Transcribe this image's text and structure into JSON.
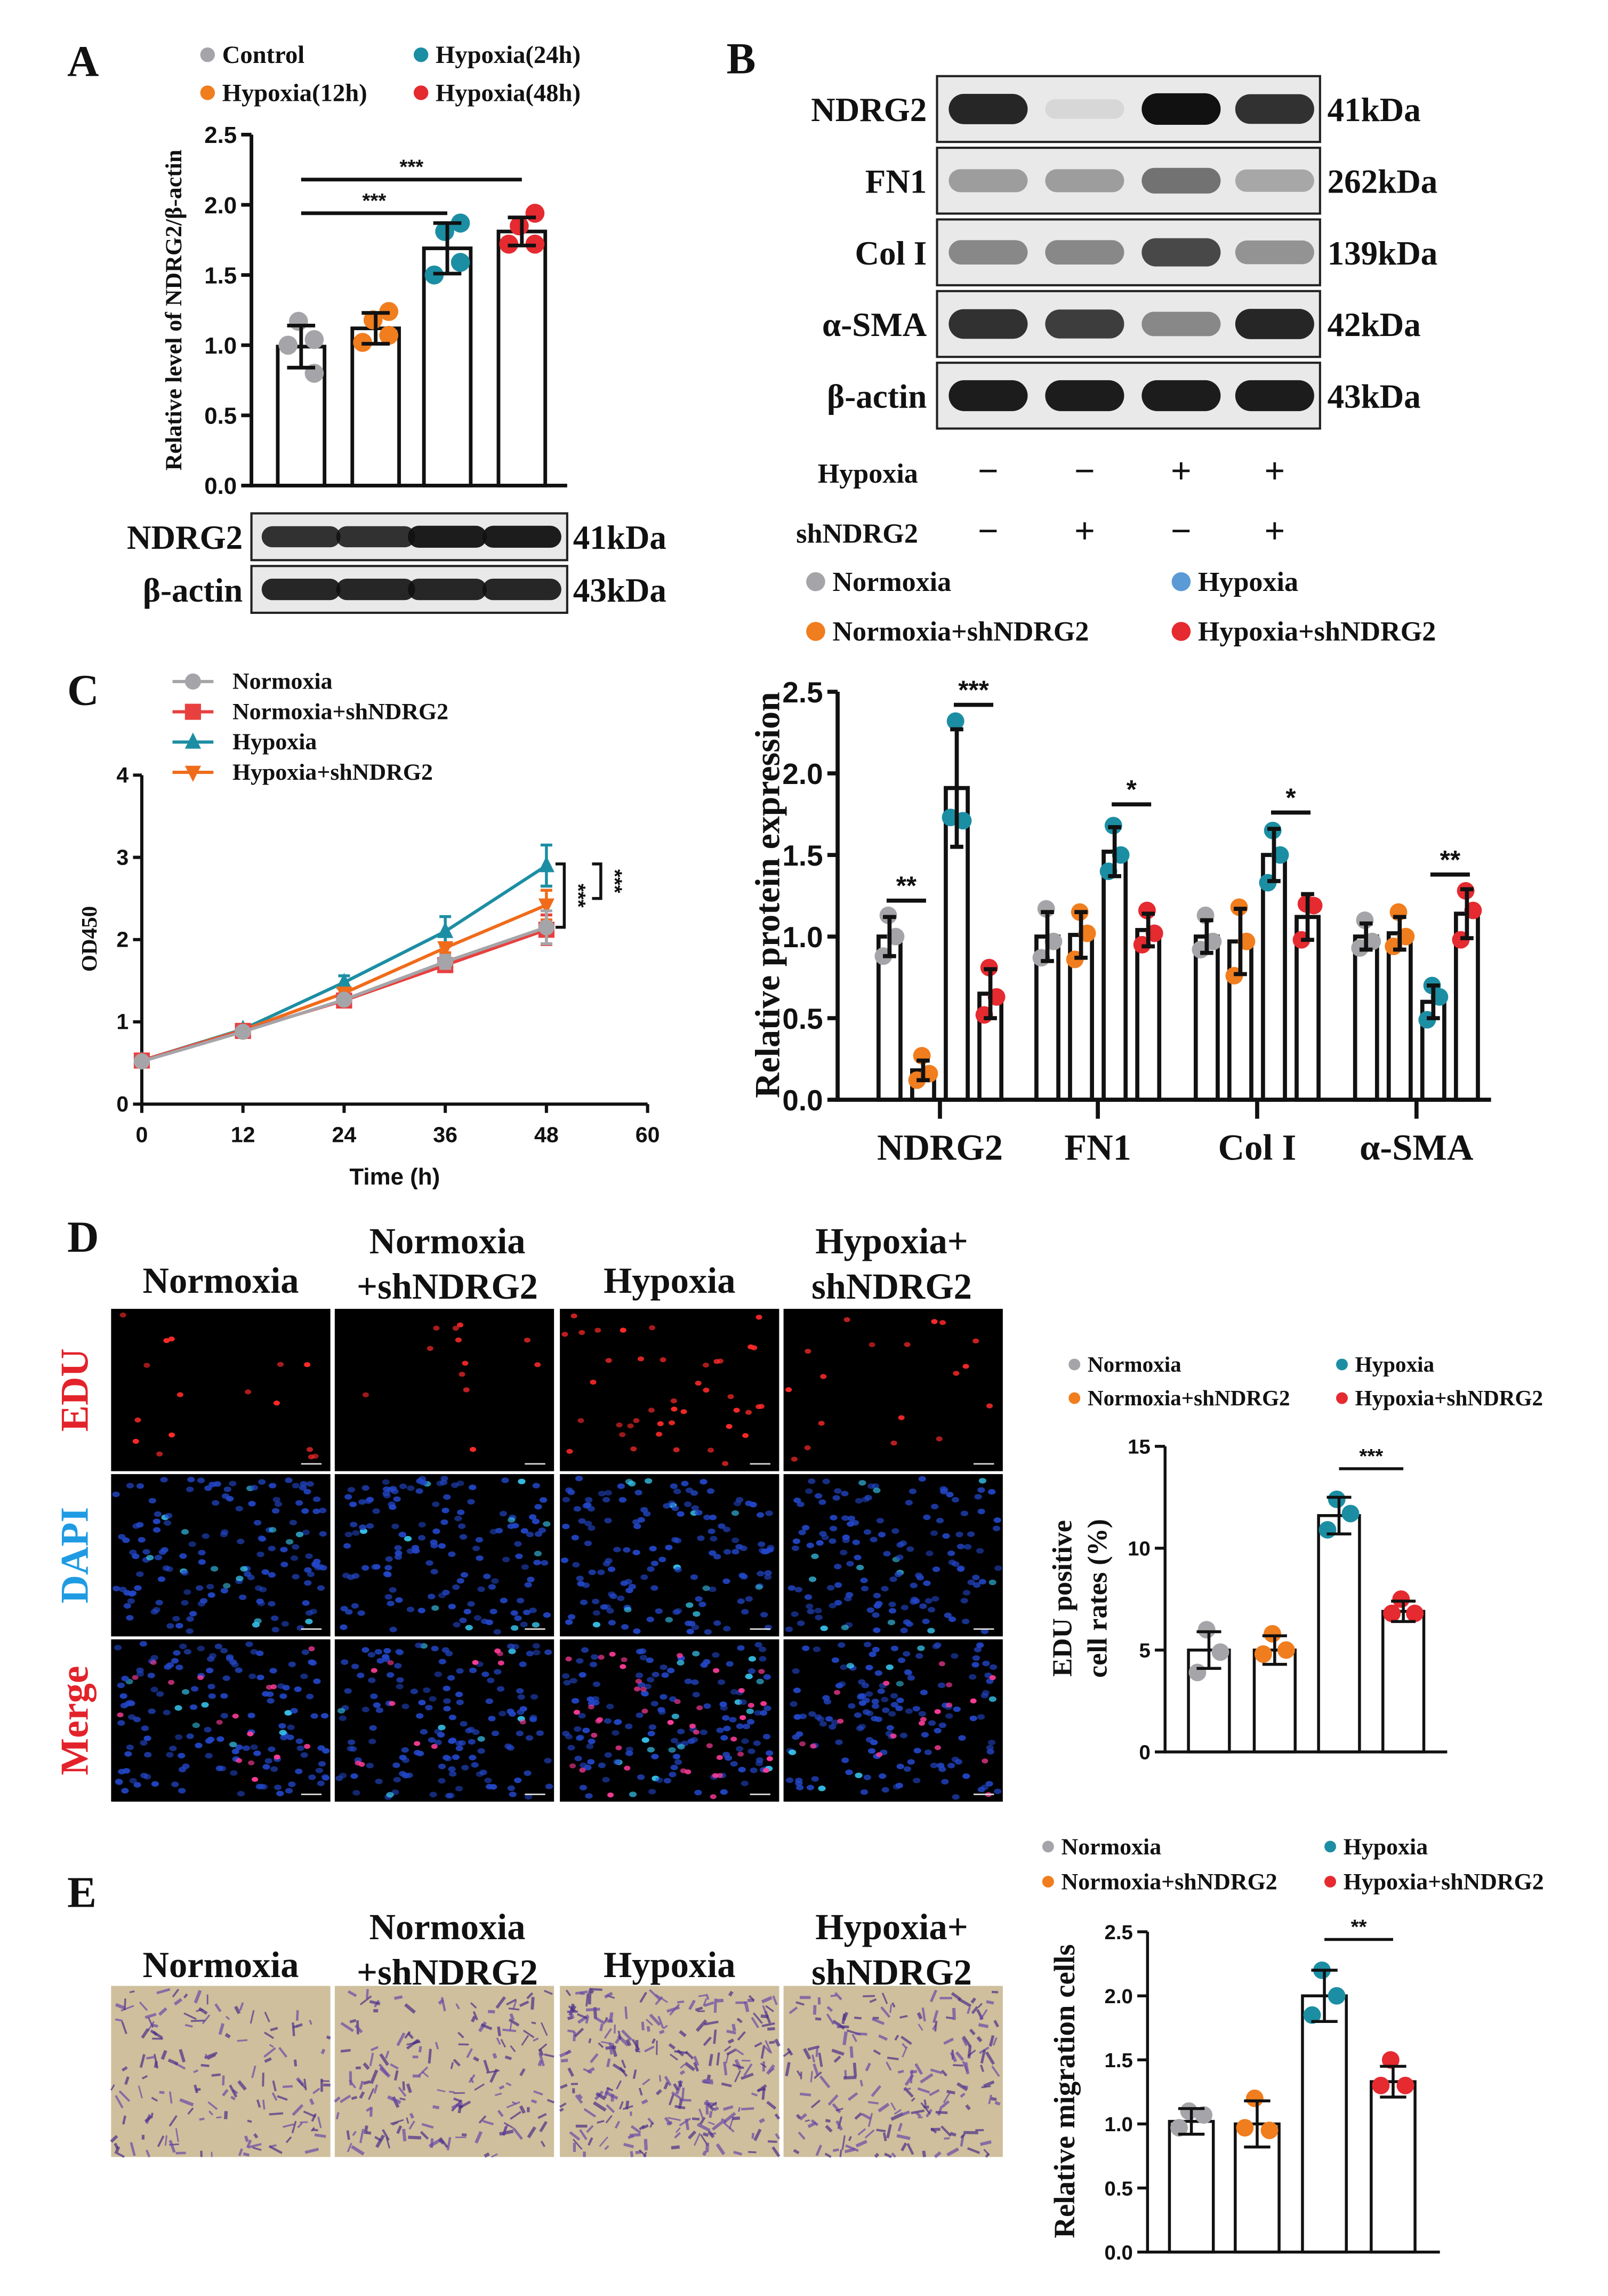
{
  "panel_labels": [
    "A",
    "B",
    "C",
    "D",
    "E"
  ],
  "colors": {
    "gray": "#a5a5a9",
    "orange": "#f07d1e",
    "teal": "#1c8ea3",
    "red": "#e52a30",
    "legend_blue": "#5b9bd5",
    "dapi": "#1f9be3",
    "edu": "#e3222a"
  },
  "blots": {
    "A": {
      "rows": [
        {
          "label": "NDRG2",
          "size": "41kDa",
          "band_intensity": [
            0.85,
            0.85,
            0.95,
            0.95
          ]
        },
        {
          "label": "β-actin",
          "size": "43kDa",
          "band_intensity": [
            0.9,
            0.9,
            0.9,
            0.9
          ]
        }
      ]
    },
    "B": {
      "rows": [
        {
          "label": "NDRG2",
          "size": "41kDa",
          "band_intensity": [
            0.9,
            0.08,
            1.0,
            0.85
          ]
        },
        {
          "label": "FN1",
          "size": "262kDa",
          "band_intensity": [
            0.35,
            0.35,
            0.55,
            0.3
          ]
        },
        {
          "label": "Col I",
          "size": "139kDa",
          "band_intensity": [
            0.45,
            0.45,
            0.75,
            0.4
          ]
        },
        {
          "label": "α-SMA",
          "size": "42kDa",
          "band_intensity": [
            0.85,
            0.8,
            0.45,
            0.9
          ]
        },
        {
          "label": "β-actin",
          "size": "43kDa",
          "band_intensity": [
            0.95,
            0.95,
            0.95,
            0.95
          ]
        }
      ],
      "conditions": [
        {
          "label": "Hypoxia",
          "signs": [
            "−",
            "−",
            "+",
            "+"
          ]
        },
        {
          "label": "shNDRG2",
          "signs": [
            "−",
            "+",
            "−",
            "+"
          ]
        }
      ],
      "legend": [
        "Normoxia",
        "Normoxia+shNDRG2",
        "Hypoxia",
        "Hypoxia+shNDRG2"
      ]
    }
  },
  "microscopy": {
    "D": {
      "columns": [
        [
          "Normoxia"
        ],
        [
          "Normoxia",
          "+shNDRG2"
        ],
        [
          "Hypoxia"
        ],
        [
          "Hypoxia+",
          "shNDRG2"
        ]
      ],
      "rows": [
        "EDU",
        "DAPI",
        "Merge"
      ]
    },
    "E": {
      "columns": [
        [
          "Normoxia"
        ],
        [
          "Normoxia",
          "+shNDRG2"
        ],
        [
          "Hypoxia"
        ],
        [
          "Hypoxia+",
          "shNDRG2"
        ]
      ]
    }
  },
  "chart_data": [
    {
      "type": "bar",
      "panel": "A",
      "title": "",
      "ylabel": "Relative level of NDRG2/β-actin",
      "ylim": [
        0,
        2.5
      ],
      "yticks": [
        0,
        0.5,
        1,
        1.5,
        2,
        2.5
      ],
      "ytick_labels": [
        "0.0",
        "0.5",
        "1.0",
        "1.5",
        "2.0",
        "2.5"
      ],
      "categories": [
        "Control",
        "Hypoxia(12h)",
        "Hypoxia(24h)",
        "Hypoxia(48h)"
      ],
      "legend": [
        "Control",
        "Hypoxia(12h)",
        "Hypoxia(24h)",
        "Hypoxia(48h)"
      ],
      "values": [
        0.99,
        1.12,
        1.69,
        1.81
      ],
      "errors": [
        0.15,
        0.11,
        0.18,
        0.1
      ],
      "points": [
        [
          1.17,
          1.04,
          1.0,
          0.8
        ],
        [
          1.18,
          1.24,
          1.02,
          1.07
        ],
        [
          1.81,
          1.87,
          1.5,
          1.59
        ],
        [
          1.85,
          1.94,
          1.72,
          1.72
        ]
      ],
      "significance": [
        {
          "from": 0,
          "to": 2,
          "y": 1.94,
          "label": "***"
        },
        {
          "from": 0,
          "to": 3,
          "y": 2.18,
          "label": "***"
        }
      ]
    },
    {
      "type": "bar",
      "panel": "B",
      "title": "",
      "ylabel": "Relative protein expression",
      "ylim": [
        0,
        2.5
      ],
      "yticks": [
        0,
        0.5,
        1,
        1.5,
        2,
        2.5
      ],
      "ytick_labels": [
        "0.0",
        "0.5",
        "1.0",
        "1.5",
        "2.0",
        "2.5"
      ],
      "categories": [
        "NDRG2",
        "FN1",
        "Col I",
        "α-SMA"
      ],
      "series": [
        {
          "name": "Normoxia",
          "values": [
            1.0,
            1.0,
            1.0,
            1.0
          ],
          "errors": [
            0.12,
            0.15,
            0.1,
            0.08
          ],
          "points": [
            [
              1.13,
              1.0,
              0.88
            ],
            [
              1.17,
              0.97,
              0.87
            ],
            [
              1.13,
              0.97,
              0.92
            ],
            [
              1.1,
              0.97,
              0.93
            ]
          ]
        },
        {
          "name": "Normoxia+shNDRG2",
          "values": [
            0.18,
            1.01,
            0.97,
            1.02
          ],
          "errors": [
            0.06,
            0.14,
            0.2,
            0.1
          ],
          "points": [
            [
              0.27,
              0.16,
              0.12
            ],
            [
              1.15,
              1.02,
              0.86
            ],
            [
              1.18,
              0.97,
              0.76
            ],
            [
              1.15,
              1.0,
              0.94
            ]
          ]
        },
        {
          "name": "Hypoxia",
          "values": [
            1.91,
            1.52,
            1.5,
            0.6
          ],
          "errors": [
            0.36,
            0.15,
            0.16,
            0.1
          ],
          "points": [
            [
              2.32,
              1.71,
              1.73
            ],
            [
              1.68,
              1.5,
              1.4
            ],
            [
              1.65,
              1.5,
              1.33
            ],
            [
              0.7,
              0.63,
              0.49
            ]
          ]
        },
        {
          "name": "Hypoxia+shNDRG2",
          "values": [
            0.65,
            1.04,
            1.12,
            1.14
          ],
          "errors": [
            0.15,
            0.1,
            0.14,
            0.15
          ],
          "points": [
            [
              0.81,
              0.63,
              0.52
            ],
            [
              1.16,
              1.02,
              0.95
            ],
            [
              1.2,
              1.19,
              0.98
            ],
            [
              1.28,
              1.16,
              0.98
            ]
          ]
        }
      ],
      "significance": [
        {
          "group": 0,
          "from": 0,
          "to": 1,
          "y": 1.22,
          "label": "**"
        },
        {
          "group": 0,
          "from": 2,
          "to": 3,
          "y": 2.42,
          "label": "***"
        },
        {
          "group": 1,
          "from": 2,
          "to": 3,
          "y": 1.81,
          "label": "*"
        },
        {
          "group": 2,
          "from": 2,
          "to": 3,
          "y": 1.76,
          "label": "*"
        },
        {
          "group": 3,
          "from": 2,
          "to": 3,
          "y": 1.38,
          "label": "**"
        }
      ]
    },
    {
      "type": "line",
      "panel": "C",
      "title": "",
      "xlabel": "Time (h)",
      "ylabel": "OD450",
      "xlim": [
        0,
        60
      ],
      "ylim": [
        0,
        4
      ],
      "xticks": [
        0,
        12,
        24,
        36,
        48,
        60
      ],
      "xtick_labels": [
        "0",
        "12",
        "24",
        "36",
        "48",
        "60"
      ],
      "yticks": [
        0,
        1,
        2,
        3,
        4
      ],
      "ytick_labels": [
        "0",
        "1",
        "2",
        "3",
        "4"
      ],
      "x": [
        0,
        12,
        24,
        36,
        48
      ],
      "series": [
        {
          "name": "Normoxia",
          "marker": "circle",
          "color": "#a5a5a9",
          "values": [
            0.52,
            0.88,
            1.27,
            1.73,
            2.15
          ],
          "errors": [
            0.02,
            0.03,
            0.05,
            0.08,
            0.2
          ]
        },
        {
          "name": "Normoxia+shNDRG2",
          "marker": "square",
          "color": "#e8403f",
          "values": [
            0.53,
            0.89,
            1.26,
            1.69,
            2.12
          ],
          "errors": [
            0.02,
            0.04,
            0.05,
            0.06,
            0.18
          ]
        },
        {
          "name": "Hypoxia",
          "marker": "triangle-up",
          "color": "#1c8ea3",
          "values": [
            0.53,
            0.91,
            1.48,
            2.1,
            2.9
          ],
          "errors": [
            0.02,
            0.03,
            0.08,
            0.18,
            0.25
          ]
        },
        {
          "name": "Hypoxia+shNDRG2",
          "marker": "triangle-down",
          "color": "#f06b1a",
          "values": [
            0.53,
            0.9,
            1.35,
            1.9,
            2.42
          ],
          "errors": [
            0.02,
            0.03,
            0.05,
            0.06,
            0.18
          ]
        }
      ],
      "significance": [
        {
          "range": [
            2.15,
            2.92
          ],
          "label": "***"
        },
        {
          "range": [
            2.5,
            2.92
          ],
          "label": "***"
        }
      ]
    },
    {
      "type": "bar",
      "panel": "D",
      "title": "",
      "ylabel": [
        "EDU positive",
        "cell rates (%)"
      ],
      "ylim": [
        0,
        15
      ],
      "yticks": [
        0,
        5,
        10,
        15
      ],
      "ytick_labels": [
        "0",
        "5",
        "10",
        "15"
      ],
      "categories": [
        "Normoxia",
        "Normoxia+shNDRG2",
        "Hypoxia",
        "Hypoxia+shNDRG2"
      ],
      "legend": [
        "Normoxia",
        "Normoxia+shNDRG2",
        "Hypoxia",
        "Hypoxia+shNDRG2"
      ],
      "values": [
        5.0,
        5.0,
        11.6,
        6.9
      ],
      "errors": [
        0.9,
        0.7,
        0.9,
        0.5
      ],
      "points": [
        [
          6.0,
          4.9,
          3.9
        ],
        [
          5.8,
          5.0,
          4.8
        ],
        [
          12.4,
          11.7,
          10.9
        ],
        [
          7.5,
          6.8,
          6.8
        ]
      ],
      "significance": [
        {
          "from": 2,
          "to": 3,
          "y": 13.9,
          "label": "***"
        }
      ]
    },
    {
      "type": "bar",
      "panel": "E",
      "title": "",
      "ylabel": "Relative migration cells",
      "ylim": [
        0,
        2.5
      ],
      "yticks": [
        0,
        0.5,
        1,
        1.5,
        2,
        2.5
      ],
      "ytick_labels": [
        "0.0",
        "0.5",
        "1.0",
        "1.5",
        "2.0",
        "2.5"
      ],
      "categories": [
        "Normoxia",
        "Normoxia+shNDRG2",
        "Hypoxia",
        "Hypoxia+shNDRG2"
      ],
      "legend": [
        "Normoxia",
        "Normoxia+shNDRG2",
        "Hypoxia",
        "Hypoxia+shNDRG2"
      ],
      "values": [
        1.02,
        1.0,
        2.0,
        1.33
      ],
      "errors": [
        0.1,
        0.18,
        0.2,
        0.12
      ],
      "points": [
        [
          1.1,
          1.07,
          0.97
        ],
        [
          1.2,
          0.95,
          0.97
        ],
        [
          2.2,
          2.0,
          1.85
        ],
        [
          1.5,
          1.3,
          1.3
        ]
      ],
      "significance": [
        {
          "from": 2,
          "to": 3,
          "y": 2.44,
          "label": "**"
        }
      ]
    }
  ]
}
